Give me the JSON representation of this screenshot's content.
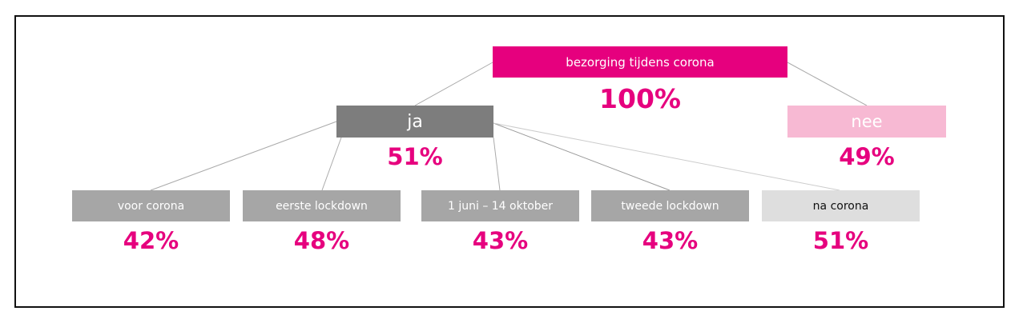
{
  "colors": {
    "accent": "#e6007e",
    "root_bg": "#e6007e",
    "ja_bg": "#7d7d7d",
    "nee_bg": "#f7b9d3",
    "leaf_bg": "#a6a6a6",
    "leaf_light_bg": "#dedede",
    "line": "#aaaaaa"
  },
  "tree": {
    "root": {
      "label": "bezorging tijdens corona",
      "percent": "100%"
    },
    "ja": {
      "label": "ja",
      "percent": "51%"
    },
    "nee": {
      "label": "nee",
      "percent": "49%"
    },
    "leaves": [
      {
        "label": "voor corona",
        "percent": "42%"
      },
      {
        "label": "eerste lockdown",
        "percent": "48%"
      },
      {
        "label": "1 juni – 14 oktober",
        "percent": "43%"
      },
      {
        "label": "tweede lockdown",
        "percent": "43%"
      },
      {
        "label": "na corona",
        "percent": "51%"
      }
    ]
  }
}
